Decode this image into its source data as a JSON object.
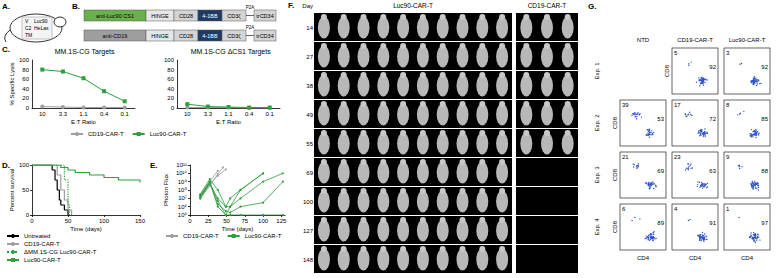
{
  "chart_data": [
    {
      "type": "line",
      "title": "MM.1S-CG Targets",
      "xlabel": "E:T Ratio",
      "ylabel": "% Specific Lysis",
      "categories": [
        "10",
        "3.3",
        "1.1",
        "0.4",
        "0.1"
      ],
      "series": [
        {
          "name": "CD19-CAR-T",
          "color": "#9e9e9e",
          "marker": "circle",
          "values": [
            3,
            2,
            1,
            1,
            1
          ]
        },
        {
          "name": "Luc90-CAR-T",
          "color": "#2e9e3e",
          "marker": "square",
          "values": [
            80,
            76,
            62,
            35,
            14
          ]
        }
      ],
      "ylim": [
        0,
        100
      ],
      "yticks": [
        0,
        20,
        40,
        60,
        80,
        100
      ],
      "legend": "bottom"
    },
    {
      "type": "line",
      "title": "MM.1S-CG ΔCS1 Targets",
      "xlabel": "E:T Ratio",
      "categories": [
        "10",
        "3.3",
        "1.1",
        "0.4",
        "0.1"
      ],
      "series": [
        {
          "name": "CD19-CAR-T",
          "color": "#9e9e9e",
          "marker": "circle",
          "values": [
            1,
            1,
            1,
            0,
            0
          ]
        },
        {
          "name": "Luc90-CAR-T",
          "color": "#2e9e3e",
          "marker": "square",
          "values": [
            8,
            3,
            2,
            1,
            1
          ]
        }
      ],
      "ylim": [
        0,
        100
      ],
      "yticks": [
        0,
        20,
        40,
        60,
        80,
        100
      ]
    },
    {
      "type": "survival",
      "xlabel": "Time (days)",
      "ylabel": "Percent survival",
      "xlim": [
        0,
        150
      ],
      "xticks": [
        0,
        50,
        100,
        150
      ],
      "ylim": [
        0,
        100
      ],
      "yticks": [
        0,
        50,
        100
      ],
      "legend": "bottom",
      "series": [
        {
          "name": "Untreated",
          "color": "#000000",
          "line_style": "solid",
          "x": [
            0,
            28,
            32,
            35,
            38,
            40,
            45,
            50
          ],
          "values": [
            100,
            90,
            70,
            50,
            30,
            20,
            10,
            0
          ]
        },
        {
          "name": "CD19-CAR-T",
          "color": "#9e9e9e",
          "line_style": "solid",
          "x": [
            0,
            35,
            40,
            45,
            50,
            55
          ],
          "values": [
            100,
            80,
            50,
            30,
            10,
            0
          ]
        },
        {
          "name": "ΔMM.1S-CG Luc90-CAR-T",
          "color": "#2e9e3e",
          "line_style": "dotted",
          "x": [
            0,
            45,
            50,
            52
          ],
          "values": [
            100,
            70,
            20,
            0
          ]
        },
        {
          "name": "Luc90-CAR-T",
          "color": "#2e9e3e",
          "line_style": "solid",
          "x": [
            0,
            40,
            50,
            60,
            80,
            100,
            120,
            150
          ],
          "values": [
            100,
            95,
            90,
            85,
            80,
            75,
            70,
            65
          ]
        }
      ]
    },
    {
      "type": "line",
      "log": "y",
      "xlabel": "Time (days)",
      "ylabel": "Photon Flux",
      "xlim": [
        0,
        130
      ],
      "xticks": [
        0,
        25,
        50,
        75,
        100,
        125
      ],
      "ylim": [
        100000,
        100000000000
      ],
      "yticks": [
        {
          "value": 100000,
          "label": "10⁵"
        },
        {
          "value": 1000000,
          "label": "10⁶"
        },
        {
          "value": 10000000,
          "label": "10⁷"
        },
        {
          "value": 100000000,
          "label": "10⁸"
        },
        {
          "value": 1000000000,
          "label": "10⁹"
        },
        {
          "value": 10000000000,
          "label": "10¹⁰"
        },
        {
          "value": 100000000000,
          "label": "10¹¹"
        }
      ],
      "legend": "bottom",
      "series": [
        {
          "name": "CD19-CAR-T",
          "color": "#9e9e9e",
          "marker": "circle",
          "x": [
            14,
            27,
            38,
            49
          ],
          "values": [
            20000000,
            500000000,
            5000000000,
            30000000000
          ]
        },
        {
          "name": "CD19-CAR-T",
          "color": "#9e9e9e",
          "marker": "circle",
          "x": [
            14,
            27,
            38,
            45
          ],
          "values": [
            10000000,
            300000000,
            8000000000,
            50000000000
          ]
        },
        {
          "name": "CD19-CAR-T",
          "color": "#9e9e9e",
          "marker": "circle",
          "x": [
            14,
            27,
            38
          ],
          "values": [
            30000000,
            1000000000,
            20000000000
          ]
        },
        {
          "name": "Luc90-CAR-T",
          "color": "#2e9e3e",
          "marker": "circle",
          "x": [
            14,
            27,
            38,
            49,
            55,
            69,
            100,
            127
          ],
          "values": [
            20000000,
            1000000000,
            1000000,
            100000,
            100000,
            100000,
            100000,
            100000
          ]
        },
        {
          "name": "Luc90-CAR-T",
          "color": "#2e9e3e",
          "marker": "circle",
          "x": [
            14,
            27,
            38,
            49,
            55,
            69,
            100,
            127
          ],
          "values": [
            10000000,
            500000000,
            10000000,
            1000000,
            1000000,
            10000000,
            1000000000,
            10000000000
          ]
        },
        {
          "name": "Luc90-CAR-T",
          "color": "#2e9e3e",
          "marker": "circle",
          "x": [
            14,
            27,
            38,
            49,
            55,
            69,
            100
          ],
          "values": [
            30000000,
            2000000000,
            100000000,
            1000000,
            10000000,
            100000000,
            10000000000
          ]
        },
        {
          "name": "Luc90-CAR-T",
          "color": "#2e9e3e",
          "marker": "circle",
          "x": [
            14,
            27,
            38,
            49,
            55,
            69,
            100
          ],
          "values": [
            10000000,
            800000000,
            5000000,
            100000,
            1000000,
            100000000,
            10000000000
          ]
        },
        {
          "name": "Luc90-CAR-T",
          "color": "#2e9e3e",
          "marker": "circle",
          "x": [
            14,
            27,
            38,
            49,
            55,
            69,
            100,
            127
          ],
          "values": [
            15000000,
            900000000,
            2000000,
            300000,
            200000,
            1000000,
            3000000,
            1000000000
          ]
        }
      ]
    }
  ],
  "panel_labels": [
    "A.",
    "B.",
    "C.",
    "D.",
    "E.",
    "F.",
    "G."
  ],
  "schematic": {
    "labels": [
      "V",
      "Luc90",
      "C2",
      "HeLas",
      "TM"
    ]
  },
  "constructs": [
    [
      {
        "label": "anti-Luc90 CS1",
        "color": "#6ab04c"
      },
      {
        "label": "HINGE",
        "color": "#e6e6e6"
      },
      {
        "label": "CD28",
        "color": "#d4d4d4"
      },
      {
        "label": "4-1BB",
        "color": "#1f3b63"
      },
      {
        "label": "CD3ζ",
        "color": "#d4d4d4"
      },
      {
        "label": "P2A",
        "color": "#ffffff"
      },
      {
        "label": "trCD34",
        "color": "#d4d4d4"
      }
    ],
    [
      {
        "label": "anti-CD19",
        "color": "#9e9e9e"
      },
      {
        "label": "HINGE",
        "color": "#e6e6e6"
      },
      {
        "label": "CD28",
        "color": "#d4d4d4"
      },
      {
        "label": "4-1BB",
        "color": "#1f3b63"
      },
      {
        "label": "CD3ζ",
        "color": "#d4d4d4"
      },
      {
        "label": "P2A",
        "color": "#ffffff"
      },
      {
        "label": "trCD34",
        "color": "#d4d4d4"
      }
    ]
  ],
  "imaging": {
    "day_label": "Day",
    "days": [
      14,
      27,
      38,
      49,
      55,
      69,
      100,
      127,
      148
    ],
    "groups": [
      {
        "name": "Luc90-CAR-T",
        "mice": 10,
        "last_day": 148
      },
      {
        "name": "CD19-CAR-T",
        "mice": 3,
        "last_day": 55
      }
    ]
  },
  "flow": {
    "columns": [
      "NTD",
      "CD19-CAR-T",
      "Luc90-CAR-T"
    ],
    "x_label": "CD4",
    "y_label": "CD8",
    "rows": [
      {
        "label": "Exp. 1",
        "cells": [
          null,
          {
            "cd8": 5,
            "cd4": 92
          },
          {
            "cd8": 3,
            "cd4": 92
          }
        ]
      },
      {
        "label": "Exp. 2",
        "cells": [
          {
            "cd8": 39,
            "cd4": 53
          },
          {
            "cd8": 17,
            "cd4": 72
          },
          {
            "cd8": 8,
            "cd4": 85
          }
        ]
      },
      {
        "label": "Exp. 3",
        "cells": [
          {
            "cd8": 21,
            "cd4": 69
          },
          {
            "cd8": 23,
            "cd4": 63
          },
          {
            "cd8": 9,
            "cd4": 88
          }
        ]
      },
      {
        "label": "Exp. 4",
        "cells": [
          {
            "cd8": 6,
            "cd4": 89
          },
          {
            "cd8": 4,
            "cd4": 91
          },
          {
            "cd8": 1,
            "cd4": 97
          }
        ]
      }
    ]
  }
}
